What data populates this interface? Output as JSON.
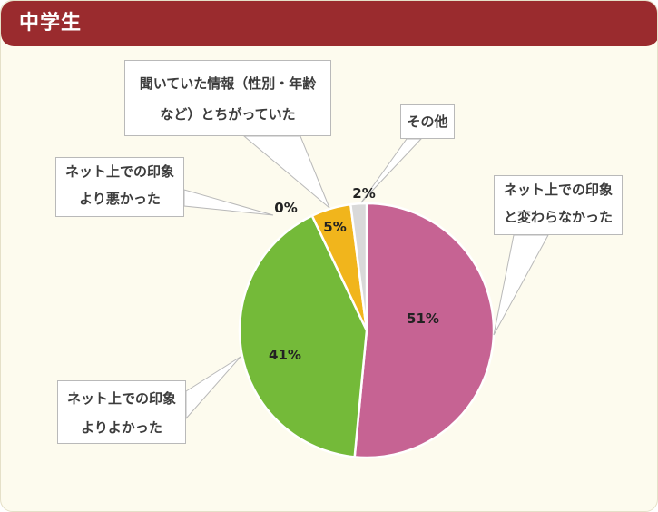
{
  "header": {
    "title": "中学生"
  },
  "colors": {
    "header_bg": "#9a2b2e",
    "panel_bg": "#fdfbee"
  },
  "chart_data": {
    "type": "pie",
    "title": "中学生",
    "slices": [
      {
        "label_lines": [
          "ネット上での印象",
          "と変わらなかった"
        ],
        "value": 51,
        "value_label": "51%",
        "color": "#c66393"
      },
      {
        "label_lines": [
          "ネット上での印象",
          "よりよかった"
        ],
        "value": 41,
        "value_label": "41%",
        "color": "#74ba39"
      },
      {
        "label_lines": [
          "ネット上での印象",
          "より悪かった"
        ],
        "value": 0,
        "value_label": "0%",
        "color": "#e8a93a"
      },
      {
        "label_lines": [
          "聞いていた情報（性別・年齢",
          "など）とちがっていた"
        ],
        "value": 5,
        "value_label": "5%",
        "color": "#f1b51c"
      },
      {
        "label_lines": [
          "その他"
        ],
        "value": 2,
        "value_label": "2%",
        "color": "#d9d9d9"
      }
    ]
  }
}
